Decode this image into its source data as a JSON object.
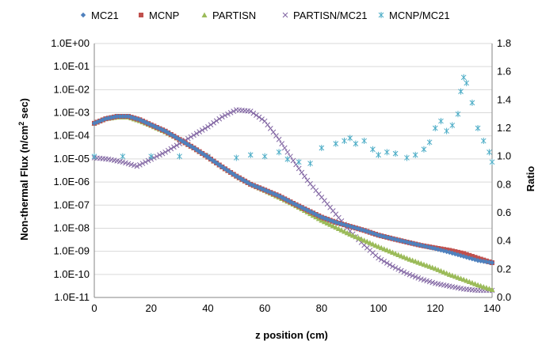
{
  "chart_data": {
    "type": "scatter",
    "x_axis": {
      "title": "z position (cm)",
      "range": [
        0,
        140
      ],
      "ticks": [
        0,
        20,
        40,
        60,
        80,
        100,
        120,
        140
      ]
    },
    "y_axis_left": {
      "title": "Non-thermal Flux (n/cm",
      "title_superscript": "2",
      "title_suffix": " sec)",
      "scale": "log",
      "range": [
        1e-11,
        1
      ],
      "tick_labels": [
        "1.0E-11",
        "1.0E-10",
        "1.0E-09",
        "1.0E-08",
        "1.0E-07",
        "1.0E-06",
        "1.0E-05",
        "1.0E-04",
        "1.0E-03",
        "1.0E-02",
        "1.0E-01",
        "1.0E+00"
      ]
    },
    "y_axis_right": {
      "title": "Ratio",
      "scale": "linear",
      "range": [
        0,
        1.8
      ],
      "tick_labels": [
        "0.0",
        "0.2",
        "0.4",
        "0.6",
        "0.8",
        "1.0",
        "1.2",
        "1.4",
        "1.6",
        "1.8"
      ]
    },
    "legend": {
      "position": "top"
    },
    "series": [
      {
        "name": "MC21",
        "axis": "left",
        "color": "#4f81bd",
        "marker": "diamond",
        "points": [
          [
            0,
            0.00035
          ],
          [
            4,
            0.00055
          ],
          [
            8,
            0.0007
          ],
          [
            12,
            0.0007
          ],
          [
            16,
            0.0005
          ],
          [
            20,
            0.0003
          ],
          [
            25,
            0.00016
          ],
          [
            30,
            7e-05
          ],
          [
            35,
            3e-05
          ],
          [
            40,
            1.2e-05
          ],
          [
            45,
            4.5e-06
          ],
          [
            50,
            1.8e-06
          ],
          [
            55,
            8e-07
          ],
          [
            60,
            4.5e-07
          ],
          [
            65,
            2.5e-07
          ],
          [
            70,
            1.2e-07
          ],
          [
            75,
            6e-08
          ],
          [
            80,
            3e-08
          ],
          [
            85,
            1.8e-08
          ],
          [
            90,
            1.2e-08
          ],
          [
            95,
            8e-09
          ],
          [
            100,
            5e-09
          ],
          [
            105,
            3.5e-09
          ],
          [
            110,
            2.5e-09
          ],
          [
            115,
            1.8e-09
          ],
          [
            120,
            1.3e-09
          ],
          [
            125,
            9e-10
          ],
          [
            130,
            6e-10
          ],
          [
            135,
            4e-10
          ],
          [
            140,
            3.2e-10
          ]
        ]
      },
      {
        "name": "MCNP",
        "axis": "left",
        "color": "#c0504d",
        "marker": "square",
        "points": [
          [
            0,
            0.00035
          ],
          [
            4,
            0.00055
          ],
          [
            8,
            0.0007
          ],
          [
            12,
            0.0007
          ],
          [
            16,
            0.0005
          ],
          [
            20,
            0.0003
          ],
          [
            25,
            0.00016
          ],
          [
            30,
            7e-05
          ],
          [
            35,
            3e-05
          ],
          [
            40,
            1.2e-05
          ],
          [
            45,
            4.5e-06
          ],
          [
            50,
            1.8e-06
          ],
          [
            55,
            8e-07
          ],
          [
            60,
            4.5e-07
          ],
          [
            65,
            2.5e-07
          ],
          [
            70,
            1.2e-07
          ],
          [
            75,
            6e-08
          ],
          [
            80,
            3e-08
          ],
          [
            85,
            1.8e-08
          ],
          [
            90,
            1.2e-08
          ],
          [
            95,
            8e-09
          ],
          [
            100,
            5e-09
          ],
          [
            105,
            3.5e-09
          ],
          [
            110,
            2.5e-09
          ],
          [
            115,
            1.8e-09
          ],
          [
            120,
            1.4e-09
          ],
          [
            125,
            1.1e-09
          ],
          [
            130,
            8e-10
          ],
          [
            135,
            5e-10
          ],
          [
            140,
            3.2e-10
          ]
        ]
      },
      {
        "name": "PARTISN",
        "axis": "left",
        "color": "#9bbb59",
        "marker": "triangle",
        "points": [
          [
            0,
            0.00035
          ],
          [
            4,
            0.00055
          ],
          [
            8,
            0.00065
          ],
          [
            12,
            0.00065
          ],
          [
            16,
            0.00045
          ],
          [
            20,
            0.00028
          ],
          [
            25,
            0.00015
          ],
          [
            30,
            7e-05
          ],
          [
            35,
            3e-05
          ],
          [
            40,
            1.2e-05
          ],
          [
            45,
            4.5e-06
          ],
          [
            50,
            1.8e-06
          ],
          [
            55,
            8e-07
          ],
          [
            60,
            4.3e-07
          ],
          [
            65,
            2.2e-07
          ],
          [
            70,
            1.1e-07
          ],
          [
            75,
            5e-08
          ],
          [
            80,
            2.2e-08
          ],
          [
            85,
            1.1e-08
          ],
          [
            90,
            5.5e-09
          ],
          [
            95,
            3e-09
          ],
          [
            100,
            1.6e-09
          ],
          [
            105,
            9e-10
          ],
          [
            110,
            5e-10
          ],
          [
            115,
            3e-10
          ],
          [
            120,
            1.8e-10
          ],
          [
            125,
            1e-10
          ],
          [
            130,
            6e-11
          ],
          [
            135,
            3.5e-11
          ],
          [
            140,
            2.2e-11
          ]
        ]
      },
      {
        "name": "PARTISN/MC21",
        "axis": "right",
        "color": "#8064a2",
        "marker": "x",
        "points": [
          [
            0,
            0.99
          ],
          [
            5,
            0.98
          ],
          [
            10,
            0.96
          ],
          [
            15,
            0.93
          ],
          [
            20,
            0.98
          ],
          [
            25,
            1.03
          ],
          [
            30,
            1.09
          ],
          [
            35,
            1.15
          ],
          [
            40,
            1.21
          ],
          [
            45,
            1.28
          ],
          [
            50,
            1.33
          ],
          [
            55,
            1.32
          ],
          [
            60,
            1.25
          ],
          [
            65,
            1.12
          ],
          [
            70,
            0.97
          ],
          [
            75,
            0.83
          ],
          [
            80,
            0.71
          ],
          [
            85,
            0.59
          ],
          [
            90,
            0.47
          ],
          [
            95,
            0.37
          ],
          [
            100,
            0.28
          ],
          [
            105,
            0.22
          ],
          [
            110,
            0.17
          ],
          [
            115,
            0.13
          ],
          [
            120,
            0.1
          ],
          [
            125,
            0.08
          ],
          [
            130,
            0.06
          ],
          [
            135,
            0.05
          ],
          [
            140,
            0.05
          ]
        ]
      },
      {
        "name": "MCNP/MC21",
        "axis": "right",
        "color": "#4bacc6",
        "marker": "star",
        "points": [
          [
            0,
            1.0
          ],
          [
            10,
            1.0
          ],
          [
            20,
            1.0
          ],
          [
            30,
            1.0
          ],
          [
            40,
            1.0
          ],
          [
            50,
            0.99
          ],
          [
            55,
            1.01
          ],
          [
            60,
            1.0
          ],
          [
            65,
            1.03
          ],
          [
            68,
            0.98
          ],
          [
            72,
            0.96
          ],
          [
            76,
            0.95
          ],
          [
            80,
            1.06
          ],
          [
            85,
            1.09
          ],
          [
            88,
            1.11
          ],
          [
            90,
            1.13
          ],
          [
            92,
            1.09
          ],
          [
            95,
            1.11
          ],
          [
            98,
            1.05
          ],
          [
            100,
            1.01
          ],
          [
            103,
            1.03
          ],
          [
            106,
            1.02
          ],
          [
            110,
            0.99
          ],
          [
            113,
            1.01
          ],
          [
            116,
            1.05
          ],
          [
            118,
            1.1
          ],
          [
            120,
            1.2
          ],
          [
            122,
            1.25
          ],
          [
            124,
            1.18
          ],
          [
            126,
            1.22
          ],
          [
            128,
            1.3
          ],
          [
            129,
            1.46
          ],
          [
            130,
            1.56
          ],
          [
            131,
            1.52
          ],
          [
            133,
            1.38
          ],
          [
            135,
            1.2
          ],
          [
            137,
            1.11
          ],
          [
            139,
            1.03
          ],
          [
            140,
            0.96
          ]
        ]
      }
    ]
  }
}
